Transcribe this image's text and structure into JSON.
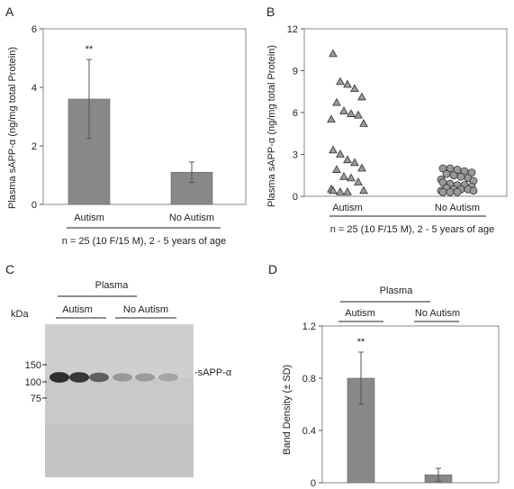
{
  "chart_data": [
    {
      "panel": "A",
      "type": "bar",
      "categories": [
        "Autism",
        "No Autism"
      ],
      "values": [
        3.6,
        1.1
      ],
      "errors": [
        1.35,
        0.35
      ],
      "annotations": [
        "**",
        ""
      ],
      "ylabel": "Plasma sAPP-α (ng/mg total Protein)",
      "ylim": [
        0,
        6
      ],
      "yticks": [
        "0",
        "2",
        "4",
        "6"
      ],
      "footnote": "n = 25 (10 F/15 M), 2 - 5 years of age",
      "bar_color": "#888888"
    },
    {
      "panel": "B",
      "type": "scatter",
      "categories": [
        "Autism",
        "No Autism"
      ],
      "ylabel": "Plasma sAPP-α (ng/mg total Protein)",
      "ylim": [
        0,
        12
      ],
      "yticks": [
        "0",
        "3",
        "6",
        "9",
        "12"
      ],
      "footnote": "n = 25 (10 F/15 M), 2 - 5 years of age",
      "series": [
        {
          "marker": "triangle",
          "values": [
            10.2,
            8.2,
            8.0,
            7.7,
            7.1,
            6.7,
            6.1,
            5.9,
            5.8,
            5.5,
            5.2,
            3.3,
            3.0,
            2.6,
            2.4,
            2.0,
            1.9,
            1.4,
            1.3,
            1.0,
            0.5,
            0.4,
            0.4,
            0.3,
            0.3
          ]
        },
        {
          "marker": "circle",
          "values": [
            2.0,
            2.0,
            1.9,
            1.8,
            1.7,
            1.6,
            1.5,
            1.4,
            1.3,
            1.2,
            1.1,
            1.0,
            0.9,
            0.8,
            0.8,
            0.7,
            0.6,
            0.5,
            0.5,
            0.5,
            0.4,
            0.4,
            0.3,
            0.3,
            0.3
          ]
        }
      ]
    },
    {
      "panel": "D",
      "type": "bar",
      "group_label": "Plasma",
      "categories": [
        "Autism",
        "No Autism"
      ],
      "values": [
        0.8,
        0.06
      ],
      "errors": [
        0.2,
        0.05
      ],
      "annotations": [
        "**",
        ""
      ],
      "ylabel": "Band Density (± SD)",
      "ylim": [
        0,
        1.2
      ],
      "yticks": [
        "0",
        "0.4",
        "0.8",
        "1.2"
      ],
      "bar_color": "#888888"
    }
  ],
  "panels": {
    "a": {
      "letter": "A"
    },
    "b": {
      "letter": "B"
    },
    "c": {
      "letter": "C",
      "group_label": "Plasma",
      "lane_groups": [
        "Autism",
        "No Autism"
      ],
      "kda_label": "kDa",
      "markers": [
        "150",
        "100",
        "75"
      ],
      "band_label": "-sAPP-α",
      "band_intensities": [
        0.95,
        0.9,
        0.65,
        0.3,
        0.28,
        0.22
      ]
    },
    "d": {
      "letter": "D"
    }
  }
}
